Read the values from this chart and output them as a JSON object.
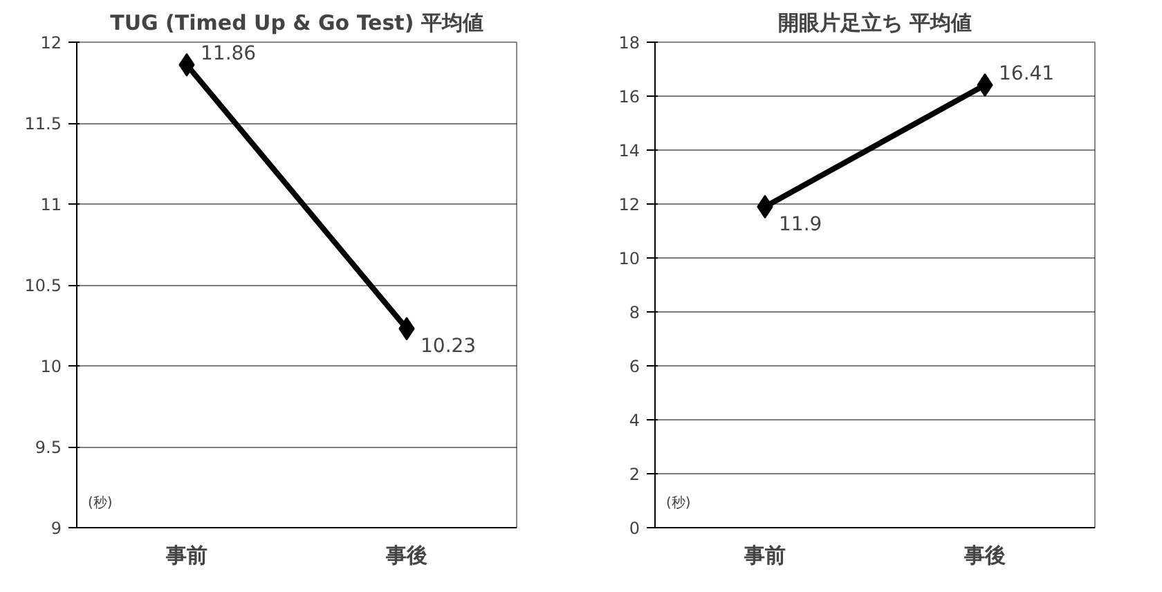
{
  "chart_data": [
    {
      "type": "line",
      "title": "TUG (Timed Up & Go Test) 平均値",
      "categories": [
        "事前",
        "事後"
      ],
      "series": [
        {
          "color": "#000000",
          "values": [
            11.86,
            10.23
          ]
        }
      ],
      "ylim": [
        9,
        12
      ],
      "yticks": [
        9,
        9.5,
        10,
        10.5,
        11,
        11.5,
        12
      ],
      "grid": "y",
      "marker": "diamond",
      "line_style": "solid",
      "data_labels": true,
      "annotations": [
        "(秒)"
      ]
    },
    {
      "type": "line",
      "title": "開眼片足立ち 平均値",
      "categories": [
        "事前",
        "事後"
      ],
      "series": [
        {
          "color": "#000000",
          "values": [
            11.9,
            16.41
          ]
        }
      ],
      "ylim": [
        0,
        18
      ],
      "yticks": [
        0,
        2,
        4,
        6,
        8,
        10,
        12,
        14,
        16,
        18
      ],
      "grid": "y",
      "marker": "diamond",
      "line_style": "solid",
      "data_labels": true,
      "annotations": [
        "(秒)"
      ]
    }
  ]
}
